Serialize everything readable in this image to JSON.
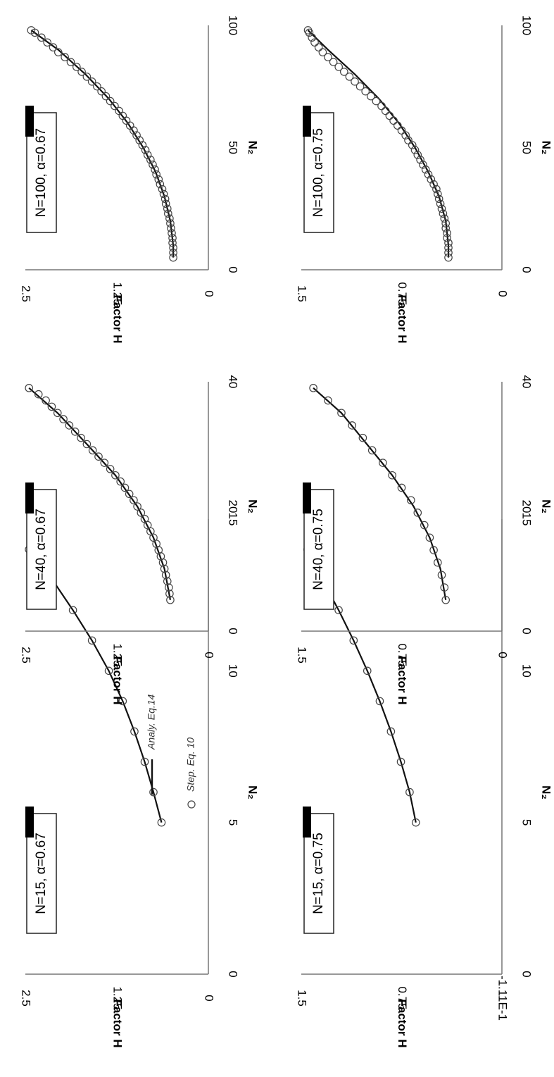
{
  "figure": {
    "legend": {
      "analytic_label": "Analy. Eq.14",
      "step_label": "Step. Eq. 10"
    }
  },
  "chart_data": [
    {
      "type": "line",
      "panel_label": "N=15, α=0.67",
      "xlabel": "N₂",
      "ylabel": "Factor H",
      "xlim": [
        0,
        15
      ],
      "ylim": [
        0,
        2.5
      ],
      "x_ticks": [
        "0",
        "5",
        "10",
        "15"
      ],
      "y_ticks": [
        "0",
        "1.25",
        "2.5"
      ],
      "legend_position": "lower-right",
      "series": [
        {
          "name": "Analy. Eq.14",
          "style": "line",
          "x": [
            5,
            6,
            7,
            8,
            9,
            10,
            11,
            12,
            13,
            14
          ],
          "y": [
            0.64,
            0.75,
            0.87,
            1.01,
            1.17,
            1.36,
            1.59,
            1.85,
            2.13,
            2.45
          ]
        },
        {
          "name": "Step. Eq. 10",
          "style": "markers",
          "x": [
            5,
            6,
            7,
            8,
            9,
            10,
            11,
            12,
            13,
            14
          ],
          "y": [
            0.64,
            0.75,
            0.87,
            1.01,
            1.17,
            1.36,
            1.59,
            1.85,
            2.13,
            2.45
          ]
        }
      ]
    },
    {
      "type": "line",
      "panel_label": "N=40, α=0.67",
      "xlabel": "N₂",
      "ylabel": "Factor H",
      "xlim": [
        0,
        40
      ],
      "ylim": [
        0,
        2.5
      ],
      "x_ticks": [
        "0",
        "20",
        "40"
      ],
      "y_ticks": [
        "0",
        "1.25",
        "2.5"
      ],
      "series": [
        {
          "name": "Analy. Eq.14",
          "style": "line",
          "x": [
            5,
            10,
            15,
            20,
            25,
            30,
            35,
            39
          ],
          "y": [
            0.52,
            0.6,
            0.75,
            0.97,
            1.27,
            1.66,
            2.06,
            2.45
          ]
        },
        {
          "name": "Step. Eq. 10",
          "style": "markers",
          "x": [
            5,
            6,
            7,
            8,
            9,
            10,
            11,
            12,
            13,
            14,
            15,
            16,
            17,
            18,
            19,
            20,
            21,
            22,
            23,
            24,
            25,
            26,
            27,
            28,
            29,
            30,
            31,
            32,
            33,
            34,
            35,
            36,
            37,
            38,
            39
          ],
          "y": [
            0.52,
            0.53,
            0.54,
            0.56,
            0.58,
            0.6,
            0.62,
            0.65,
            0.68,
            0.71,
            0.75,
            0.79,
            0.83,
            0.87,
            0.92,
            0.97,
            1.02,
            1.08,
            1.14,
            1.2,
            1.27,
            1.34,
            1.42,
            1.5,
            1.58,
            1.66,
            1.74,
            1.82,
            1.9,
            1.98,
            2.06,
            2.14,
            2.22,
            2.32,
            2.45
          ]
        }
      ]
    },
    {
      "type": "line",
      "panel_label": "N=100, α=0.67",
      "xlabel": "N₂",
      "ylabel": "Factor H",
      "xlim": [
        0,
        100
      ],
      "ylim": [
        0,
        2.5
      ],
      "x_ticks": [
        "0",
        "50",
        "100"
      ],
      "y_ticks": [
        "0",
        "1.25",
        "2.5"
      ],
      "series": [
        {
          "name": "Analy. Eq.14",
          "style": "line",
          "x": [
            5,
            10,
            20,
            30,
            40,
            50,
            60,
            70,
            80,
            90,
            98
          ],
          "y": [
            0.48,
            0.48,
            0.52,
            0.6,
            0.72,
            0.89,
            1.1,
            1.36,
            1.68,
            2.05,
            2.42
          ]
        },
        {
          "name": "Step. Eq. 10",
          "style": "markers",
          "x": [
            5,
            7,
            9,
            11,
            13,
            15,
            17,
            19,
            21,
            23,
            25,
            27,
            29,
            31,
            33,
            35,
            37,
            39,
            41,
            43,
            45,
            47,
            49,
            51,
            53,
            55,
            57,
            59,
            61,
            63,
            65,
            67,
            69,
            71,
            73,
            75,
            77,
            79,
            81,
            83,
            85,
            87,
            89,
            91,
            93,
            95,
            97,
            98
          ],
          "y": [
            0.48,
            0.48,
            0.48,
            0.49,
            0.49,
            0.5,
            0.51,
            0.52,
            0.53,
            0.55,
            0.56,
            0.58,
            0.59,
            0.61,
            0.63,
            0.66,
            0.68,
            0.71,
            0.73,
            0.76,
            0.79,
            0.83,
            0.86,
            0.9,
            0.94,
            0.98,
            1.02,
            1.07,
            1.12,
            1.17,
            1.22,
            1.28,
            1.34,
            1.4,
            1.46,
            1.52,
            1.59,
            1.66,
            1.73,
            1.8,
            1.88,
            1.96,
            2.05,
            2.12,
            2.2,
            2.28,
            2.37,
            2.42
          ]
        }
      ]
    },
    {
      "type": "line",
      "panel_label": "N=15, α=0.75",
      "xlabel": "N₂",
      "ylabel": "Factor H",
      "xlim": [
        0,
        15
      ],
      "ylim": [
        -0.111,
        1.5
      ],
      "x_ticks": [
        "0",
        "5",
        "10",
        "15"
      ],
      "y_ticks": [
        "-1.11E-1",
        "0.75",
        "1.5"
      ],
      "series": [
        {
          "name": "Analy. Eq.14",
          "style": "line",
          "x": [
            5,
            6,
            7,
            8,
            9,
            10,
            11,
            12,
            13,
            14
          ],
          "y": [
            0.58,
            0.63,
            0.7,
            0.78,
            0.87,
            0.97,
            1.08,
            1.2,
            1.33,
            1.45
          ]
        },
        {
          "name": "Step. Eq. 10",
          "style": "markers",
          "x": [
            5,
            6,
            7,
            8,
            9,
            10,
            11,
            12,
            13,
            14
          ],
          "y": [
            0.58,
            0.63,
            0.7,
            0.78,
            0.87,
            0.97,
            1.08,
            1.2,
            1.33,
            1.45
          ]
        }
      ]
    },
    {
      "type": "line",
      "panel_label": "N=40, α=0.75",
      "xlabel": "N₂",
      "ylabel": "Factor H",
      "xlim": [
        0,
        40
      ],
      "ylim": [
        0,
        1.5
      ],
      "x_ticks": [
        "0",
        "20",
        "40"
      ],
      "y_ticks": [
        "0",
        "0.75",
        "1.5"
      ],
      "series": [
        {
          "name": "Analy. Eq.14",
          "style": "line",
          "x": [
            5,
            10,
            15,
            20,
            25,
            30,
            35,
            39
          ],
          "y": [
            0.42,
            0.46,
            0.54,
            0.66,
            0.82,
            1.01,
            1.2,
            1.41
          ]
        },
        {
          "name": "Step. Eq. 10",
          "style": "markers",
          "x": [
            5,
            7,
            9,
            11,
            13,
            15,
            17,
            19,
            21,
            23,
            25,
            27,
            29,
            31,
            33,
            35,
            37,
            39
          ],
          "y": [
            0.42,
            0.43,
            0.45,
            0.48,
            0.51,
            0.54,
            0.58,
            0.63,
            0.68,
            0.75,
            0.82,
            0.89,
            0.97,
            1.04,
            1.12,
            1.2,
            1.3,
            1.41
          ]
        }
      ]
    },
    {
      "type": "line",
      "panel_label": "N=100, α=0.75",
      "xlabel": "N₂",
      "ylabel": "Factor H",
      "xlim": [
        0,
        100
      ],
      "ylim": [
        0,
        1.5
      ],
      "x_ticks": [
        "0",
        "50",
        "100"
      ],
      "y_ticks": [
        "0",
        "0.75",
        "1.5"
      ],
      "series": [
        {
          "name": "Analy. Eq.14",
          "style": "line",
          "x": [
            5,
            10,
            20,
            30,
            40,
            50,
            60,
            70,
            80,
            90,
            98
          ],
          "y": [
            0.4,
            0.4,
            0.42,
            0.47,
            0.55,
            0.65,
            0.77,
            0.92,
            1.1,
            1.3,
            1.45
          ]
        },
        {
          "name": "Step. Eq. 10",
          "style": "markers",
          "x": [
            5,
            7,
            9,
            11,
            13,
            15,
            17,
            19,
            21,
            23,
            25,
            27,
            29,
            31,
            33,
            35,
            37,
            39,
            41,
            43,
            45,
            47,
            49,
            51,
            53,
            55,
            57,
            59,
            61,
            63,
            65,
            67,
            69,
            71,
            73,
            75,
            77,
            79,
            81,
            83,
            85,
            87,
            89,
            91,
            93,
            95,
            97,
            98
          ],
          "y": [
            0.4,
            0.4,
            0.4,
            0.4,
            0.41,
            0.41,
            0.42,
            0.42,
            0.43,
            0.44,
            0.45,
            0.46,
            0.47,
            0.48,
            0.49,
            0.51,
            0.53,
            0.55,
            0.57,
            0.59,
            0.61,
            0.63,
            0.65,
            0.67,
            0.7,
            0.72,
            0.75,
            0.78,
            0.81,
            0.84,
            0.87,
            0.9,
            0.94,
            0.98,
            1.02,
            1.06,
            1.1,
            1.14,
            1.18,
            1.22,
            1.26,
            1.3,
            1.34,
            1.37,
            1.4,
            1.42,
            1.44,
            1.45
          ]
        }
      ]
    }
  ]
}
